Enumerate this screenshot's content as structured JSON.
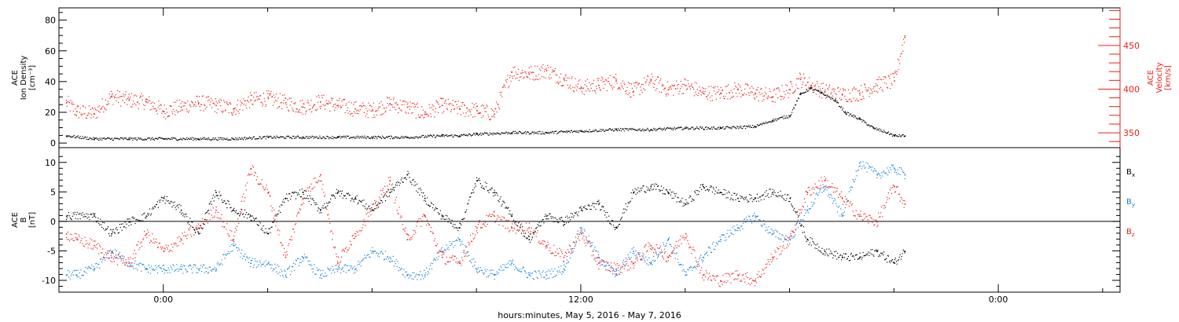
{
  "panels": {
    "top": {
      "ylabel_lines": [
        "ACE",
        "Ion Density",
        "[cm⁻³]"
      ],
      "ylabel_right_lines": [
        "ACE",
        "Velocity",
        "[km/s]"
      ],
      "left_ticks": [
        "0",
        "20",
        "40",
        "60",
        "80"
      ],
      "right_ticks": [
        "350",
        "400",
        "450"
      ]
    },
    "bottom": {
      "ylabel_lines": [
        "ACE",
        "B",
        "[nT]"
      ],
      "left_ticks": [
        "-10",
        "-5",
        "0",
        "5",
        "10"
      ],
      "legend": [
        {
          "label": "Bx",
          "base": "B",
          "sub": "x",
          "color": "#000000"
        },
        {
          "label": "By",
          "base": "B",
          "sub": "y",
          "color": "#1a7fd4"
        },
        {
          "label": "Bz",
          "base": "B",
          "sub": "z",
          "color": "#e8201c"
        }
      ]
    }
  },
  "xaxis": {
    "title": "hours:minutes, May  5, 2016 - May  7, 2016",
    "tick_labels": [
      "0:00",
      "12:00",
      "0:00"
    ]
  },
  "colors": {
    "density": "#000000",
    "velocity": "#e8201c",
    "bx": "#000000",
    "by": "#1a7fd4",
    "bz": "#e8201c",
    "velocity_axis": "#e8201c"
  },
  "chart_data": [
    {
      "type": "scatter",
      "panel": "top",
      "ylabel": "ACE Ion Density [cm⁻³]",
      "ylabel_right": "ACE Velocity [km/s]",
      "xlim": [
        -3,
        27.5
      ],
      "ylim": [
        -3,
        88
      ],
      "ylim_right": [
        333,
        493
      ],
      "x_unit": "hours from 2016-05-06 0:00",
      "series": [
        {
          "name": "Density",
          "axis": "left",
          "color": "#000000",
          "x": [
            -2.8,
            -2,
            -1,
            0,
            1,
            2,
            3,
            4,
            5,
            6,
            7,
            8,
            8.5,
            9,
            10,
            11,
            12,
            13,
            14,
            15,
            16,
            17,
            17.5,
            18,
            18.3,
            18.6,
            18.9,
            19.3,
            19.6,
            20,
            20.4,
            20.8,
            21,
            21.3
          ],
          "y": [
            5,
            3,
            3,
            3,
            3,
            3,
            4,
            4,
            4,
            4,
            4,
            5,
            5,
            6,
            7,
            7,
            8,
            9,
            9,
            10,
            10,
            11,
            15,
            18,
            32,
            36,
            33,
            28,
            20,
            16,
            10,
            7,
            5,
            5
          ]
        },
        {
          "name": "Velocity",
          "axis": "right",
          "color": "#e8201c",
          "x": [
            -2.8,
            -2.5,
            -2,
            -1.5,
            -1,
            -0.5,
            0,
            0.5,
            1,
            1.5,
            2,
            2.5,
            3,
            3.5,
            4,
            4.5,
            5,
            5.5,
            6,
            6.5,
            7,
            7.5,
            8,
            8.5,
            9,
            9.5,
            10,
            10.5,
            11,
            11.5,
            12,
            12.5,
            13,
            13.5,
            14,
            14.5,
            15,
            15.5,
            16,
            16.5,
            17,
            17.5,
            18,
            18.3,
            18.6,
            19,
            19.5,
            20,
            20.5,
            21,
            21.3
          ],
          "y": [
            385,
            375,
            372,
            392,
            388,
            386,
            375,
            380,
            385,
            382,
            378,
            388,
            390,
            385,
            380,
            386,
            382,
            378,
            376,
            384,
            380,
            372,
            382,
            378,
            376,
            372,
            420,
            418,
            422,
            412,
            402,
            405,
            410,
            398,
            410,
            400,
            405,
            396,
            396,
            400,
            396,
            392,
            400,
            412,
            405,
            398,
            394,
            396,
            405,
            410,
            460
          ]
        }
      ]
    },
    {
      "type": "scatter",
      "panel": "bottom",
      "ylabel": "ACE B [nT]",
      "xlim": [
        -3,
        27.5
      ],
      "ylim": [
        -12,
        12.5
      ],
      "x_unit": "hours from 2016-05-06 0:00",
      "series": [
        {
          "name": "Bx",
          "color": "#000000",
          "x": [
            -2.8,
            -2,
            -1.5,
            -1,
            -0.5,
            0,
            0.5,
            1,
            1.5,
            2,
            2.5,
            3,
            3.5,
            4,
            4.5,
            5,
            5.5,
            6,
            6.5,
            7,
            7.5,
            8,
            8.5,
            9,
            9.5,
            10,
            10.5,
            11,
            11.5,
            12,
            12.5,
            13,
            13.5,
            14,
            14.5,
            15,
            15.5,
            16,
            16.5,
            17,
            17.5,
            18,
            18.5,
            19,
            19.5,
            20,
            20.5,
            21,
            21.3
          ],
          "y": [
            1,
            1,
            -2,
            0,
            1,
            4,
            2,
            -2,
            5,
            2,
            1,
            -2,
            4,
            5,
            2,
            5,
            4,
            2,
            5,
            8,
            4,
            1,
            -1,
            7,
            5,
            1,
            -3,
            1,
            0,
            2,
            3,
            -1,
            5,
            6,
            5,
            3,
            6,
            5,
            4,
            4,
            5,
            4,
            -3,
            -5,
            -6,
            -6,
            -5,
            -7,
            -5
          ]
        },
        {
          "name": "By",
          "color": "#1a7fd4",
          "x": [
            -2.8,
            -2.5,
            -2,
            -1.5,
            -1,
            -0.5,
            0,
            0.5,
            1,
            1.5,
            2,
            2.5,
            3,
            3.5,
            4,
            4.5,
            5,
            5.5,
            6,
            6.5,
            7,
            7.5,
            8,
            8.5,
            9,
            9.5,
            10,
            10.5,
            11,
            11.5,
            12,
            12.5,
            13,
            13.5,
            14,
            14.5,
            15,
            15.5,
            16,
            16.5,
            17,
            17.5,
            18,
            18.5,
            19,
            19.5,
            20,
            20.5,
            21,
            21.3
          ],
          "y": [
            -9,
            -9,
            -8,
            -5,
            -7,
            -8,
            -8,
            -8,
            -8,
            -8,
            -4,
            -7,
            -7,
            -9,
            -6,
            -9,
            -8,
            -8,
            -5,
            -6,
            -9,
            -9,
            -5,
            -3,
            -8,
            -9,
            -7,
            -9,
            -9,
            -8,
            -1,
            -6,
            -9,
            -5,
            -7,
            -3,
            -9,
            -6,
            -3,
            -1,
            1,
            -2,
            -3,
            2,
            6,
            1,
            10,
            8,
            9,
            8
          ]
        },
        {
          "name": "Bz",
          "color": "#e8201c",
          "x": [
            -2.8,
            -2.5,
            -2,
            -1.5,
            -1,
            -0.5,
            0,
            0.5,
            1,
            1.5,
            2,
            2.5,
            3,
            3.5,
            4,
            4.5,
            5,
            5.5,
            6,
            6.5,
            7,
            7.5,
            8,
            8.5,
            9,
            9.5,
            10,
            10.5,
            11,
            11.5,
            12,
            12.5,
            13,
            13.5,
            14,
            14.5,
            15,
            15.5,
            16,
            16.5,
            17,
            17.5,
            18,
            18.5,
            19,
            19.5,
            20,
            20.5,
            21,
            21.3
          ],
          "y": [
            -2,
            -3,
            -4,
            -6,
            -7,
            -2,
            -5,
            -3,
            -1,
            2,
            -3,
            9,
            5,
            -6,
            4,
            8,
            -7,
            -2,
            2,
            7,
            -3,
            1,
            -6,
            -7,
            -1,
            1,
            -1,
            -1,
            -4,
            -6,
            -2,
            -7,
            -8,
            -7,
            -4,
            -6,
            -2,
            -9,
            -10,
            -9,
            -10,
            -6,
            -3,
            5,
            7,
            4,
            1,
            0,
            6,
            3
          ]
        }
      ]
    }
  ]
}
